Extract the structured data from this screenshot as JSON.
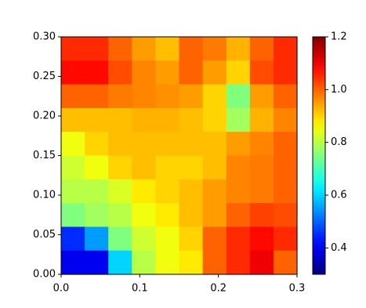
{
  "chart_data": {
    "type": "heatmap",
    "colormap": "jet",
    "xlim": [
      0,
      0.3
    ],
    "ylim": [
      0,
      0.3
    ],
    "xticks": [
      {
        "value": 0,
        "label": "0.0"
      },
      0.1,
      0.2,
      0.3
    ],
    "yticks": [
      {
        "value": 0,
        "label": "0.00"
      },
      {
        "value": 0.05,
        "label": "0.05"
      },
      {
        "value": 0.1,
        "label": "0.10"
      },
      {
        "value": 0.15,
        "label": "0.15"
      },
      {
        "value": 0.2,
        "label": "0.20"
      },
      {
        "value": 0.25,
        "label": "0.25"
      },
      {
        "value": 0.3,
        "label": "0.30"
      }
    ],
    "clim": [
      0.3,
      1.2
    ],
    "cticks": [
      0.4,
      0.6,
      0.8,
      {
        "value": 1,
        "label": "1.0"
      },
      1.2
    ],
    "z": [
      [
        1.05,
        1.05,
        1.0,
        0.95,
        0.92,
        1.0,
        0.98,
        0.93,
        1.0,
        1.05
      ],
      [
        1.08,
        1.08,
        1.02,
        0.97,
        0.95,
        1.0,
        0.95,
        0.9,
        1.02,
        1.05
      ],
      [
        1.0,
        1.0,
        0.98,
        0.97,
        0.96,
        0.95,
        0.9,
        0.75,
        0.95,
        1.0
      ],
      [
        0.92,
        0.92,
        0.92,
        0.93,
        0.93,
        0.92,
        0.9,
        0.78,
        0.93,
        0.97
      ],
      [
        0.85,
        0.9,
        0.92,
        0.92,
        0.92,
        0.92,
        0.92,
        0.95,
        0.97,
        1.0
      ],
      [
        0.82,
        0.85,
        0.9,
        0.92,
        0.9,
        0.9,
        0.92,
        0.97,
        0.98,
        1.0
      ],
      [
        0.8,
        0.8,
        0.83,
        0.88,
        0.9,
        0.92,
        0.95,
        0.97,
        0.98,
        1.0
      ],
      [
        0.75,
        0.78,
        0.8,
        0.85,
        0.88,
        0.92,
        0.95,
        1.0,
        1.03,
        1.02
      ],
      [
        0.45,
        0.55,
        0.75,
        0.82,
        0.85,
        0.9,
        1.0,
        1.05,
        1.08,
        1.05
      ],
      [
        0.4,
        0.4,
        0.6,
        0.8,
        0.85,
        0.88,
        1.0,
        1.05,
        1.1,
        1.0
      ]
    ]
  }
}
